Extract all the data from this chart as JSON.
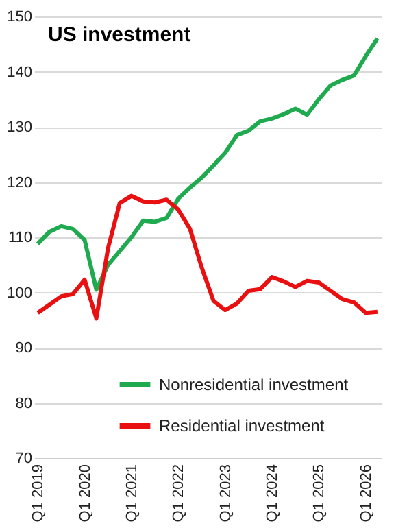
{
  "chart_data": {
    "type": "line",
    "title": "US investment",
    "categories": [
      "Q1 2019",
      null,
      null,
      null,
      "Q1 2020",
      null,
      null,
      null,
      "Q1 2021",
      null,
      null,
      null,
      "Q1 2022",
      null,
      null,
      null,
      "Q1 2023",
      null,
      null,
      null,
      "Q1 2024",
      null,
      null,
      null,
      "Q1 2025",
      null,
      null,
      null,
      "Q1 2026",
      null
    ],
    "series": [
      {
        "name": "Nonresidential investment",
        "color": "#1faa4f",
        "values": [
          108.8,
          111,
          112,
          111.5,
          109.5,
          100.5,
          105,
          107.5,
          110,
          113,
          112.8,
          113.5,
          117,
          119,
          120.8,
          123,
          125.3,
          128.5,
          129.3,
          131,
          131.5,
          132.3,
          133.3,
          132.2,
          135,
          137.5,
          138.5,
          139.3,
          142.8,
          146
        ]
      },
      {
        "name": "Residential investment",
        "color": "#e81010",
        "values": [
          96.3,
          97.8,
          99.3,
          99.7,
          102.3,
          95.3,
          108,
          116.2,
          117.5,
          116.5,
          116.3,
          116.8,
          115,
          111.5,
          104.5,
          98.5,
          96.8,
          98,
          100.3,
          100.6,
          102.8,
          102,
          101,
          102.1,
          101.8,
          100.3,
          98.8,
          98.2,
          96.3,
          96.5
        ]
      }
    ],
    "ylim": [
      70,
      150
    ],
    "yticks": [
      70,
      80,
      90,
      100,
      110,
      120,
      130,
      140,
      150
    ],
    "grid": "y",
    "legend": "bottom",
    "marker": "none",
    "line_style": "solid"
  }
}
